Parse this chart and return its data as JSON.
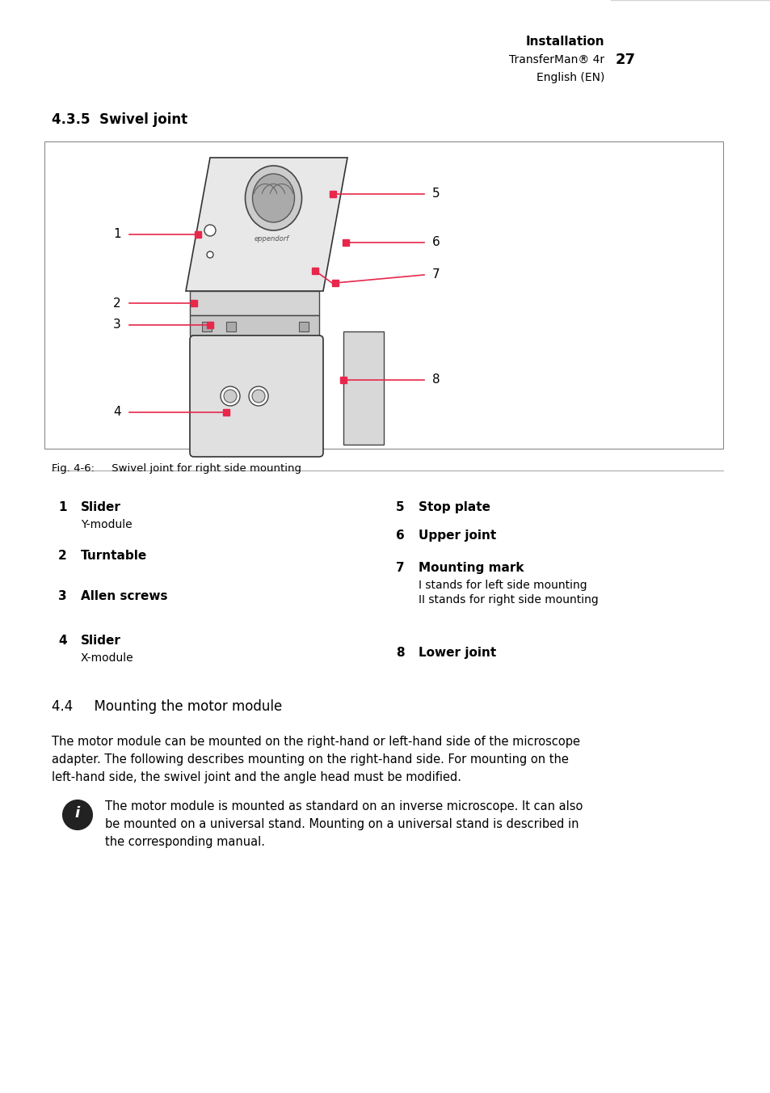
{
  "page_title": "Installation",
  "page_subtitle": "TransferMan® 4r",
  "page_number": "27",
  "page_lang": "English (EN)",
  "section_title": "4.3.5  Swivel joint",
  "fig_caption": "Fig. 4-6:     Swivel joint for right side mounting",
  "section2_title": "4.4     Mounting the motor module",
  "body_text": "The motor module can be mounted on the right-hand or left-hand side of the microscope adapter. The following describes mounting on the right-hand side. For mounting on the left-hand side, the swivel joint and the angle head must be modified.",
  "info_text": "The motor module is mounted as standard on an inverse microscope. It can also be mounted on a universal stand. Mounting on a universal stand is described in the corresponding manual.",
  "labels_left": [
    {
      "num": "1",
      "bold": "Slider",
      "sub": "Y-module"
    },
    {
      "num": "2",
      "bold": "Turntable",
      "sub": ""
    },
    {
      "num": "3",
      "bold": "Allen screws",
      "sub": ""
    },
    {
      "num": "4",
      "bold": "Slider",
      "sub": "X-module"
    }
  ],
  "labels_right": [
    {
      "num": "5",
      "bold": "Stop plate",
      "sub": ""
    },
    {
      "num": "6",
      "bold": "Upper joint",
      "sub": ""
    },
    {
      "num": "7",
      "bold": "Mounting mark",
      "sub": "I stands for left side mounting\nII stands for right side mounting"
    },
    {
      "num": "8",
      "bold": "Lower joint",
      "sub": ""
    }
  ],
  "accent_color": "#e8274b",
  "bg_color": "#ffffff",
  "header_bg": "#d3d3d3",
  "text_color": "#000000",
  "line_color": "#000000",
  "fig_border_color": "#555555"
}
